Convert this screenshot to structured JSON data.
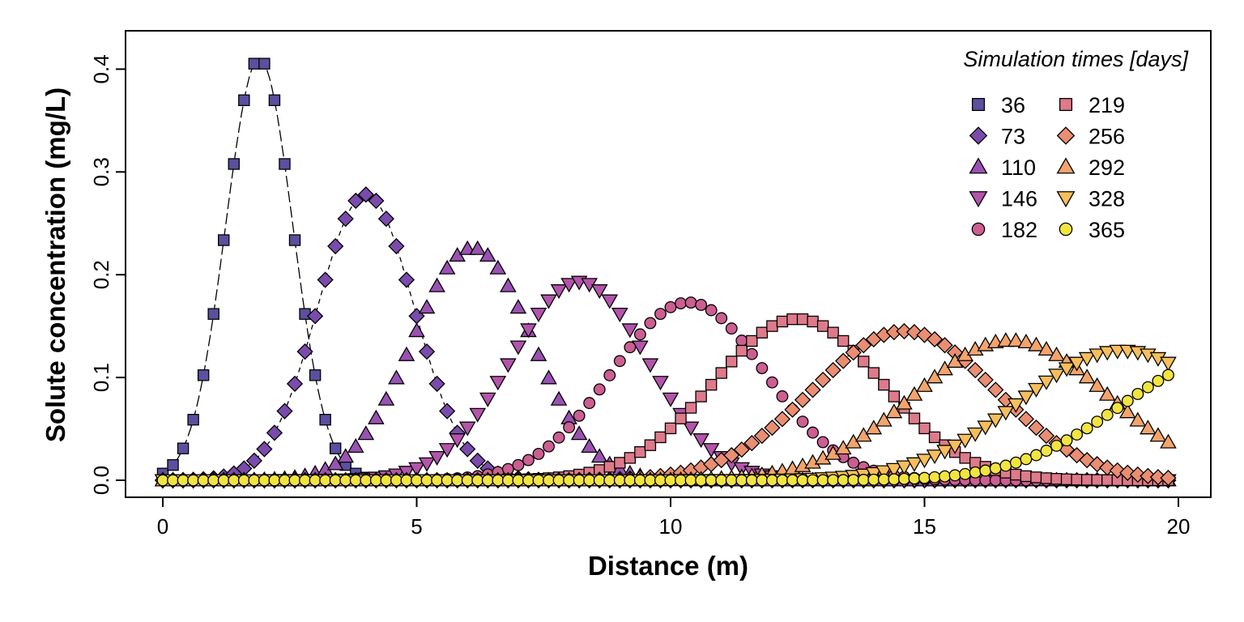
{
  "chart_data": {
    "type": "scatter",
    "xlabel": "Distance (m)",
    "ylabel": "Solute concentration (mg/L)",
    "xlim": [
      0,
      20
    ],
    "ylim": [
      0,
      0.42
    ],
    "x_ticks": [
      "0",
      "5",
      "10",
      "15",
      "20"
    ],
    "y_ticks": [
      "0.0",
      "0.1",
      "0.2",
      "0.3",
      "0.4"
    ],
    "grid": false,
    "legend": {
      "title": "Simulation times [days]",
      "placement": "top-right",
      "columns": 2
    },
    "x_sampling": {
      "start": 0,
      "step": 0.2,
      "end": 19.8
    },
    "series": [
      {
        "name": "36",
        "marker": "square",
        "color": "#5A509F",
        "peak_x": 1.9,
        "peak_y": 0.41,
        "spread": 0.66,
        "dashed_line": true
      },
      {
        "name": "73",
        "marker": "diamond",
        "color": "#7A4BAC",
        "peak_x": 4.0,
        "peak_y": 0.278,
        "spread": 0.95,
        "dashed_line": true
      },
      {
        "name": "110",
        "marker": "triangle-up",
        "color": "#9A52B2",
        "peak_x": 6.1,
        "peak_y": 0.226,
        "spread": 1.17
      },
      {
        "name": "146",
        "marker": "triangle-down",
        "color": "#B355AB",
        "peak_x": 8.2,
        "peak_y": 0.193,
        "spread": 1.35
      },
      {
        "name": "182",
        "marker": "circle",
        "color": "#CC5E91",
        "peak_x": 10.35,
        "peak_y": 0.173,
        "spread": 1.51
      },
      {
        "name": "219",
        "marker": "square",
        "color": "#DE7A8A",
        "peak_x": 12.5,
        "peak_y": 0.157,
        "spread": 1.66
      },
      {
        "name": "256",
        "marker": "diamond",
        "color": "#EA8E73",
        "peak_x": 14.6,
        "peak_y": 0.145,
        "spread": 1.8
      },
      {
        "name": "292",
        "marker": "triangle-up",
        "color": "#F3A46C",
        "peak_x": 16.7,
        "peak_y": 0.136,
        "spread": 1.92
      },
      {
        "name": "328",
        "marker": "triangle-down",
        "color": "#F7BE5C",
        "peak_x": 18.9,
        "peak_y": 0.126,
        "spread": 2.03
      },
      {
        "name": "365",
        "marker": "circle",
        "color": "#F2E440",
        "peak_x": 21.0,
        "peak_y": 0.12,
        "spread": 2.13
      }
    ]
  }
}
